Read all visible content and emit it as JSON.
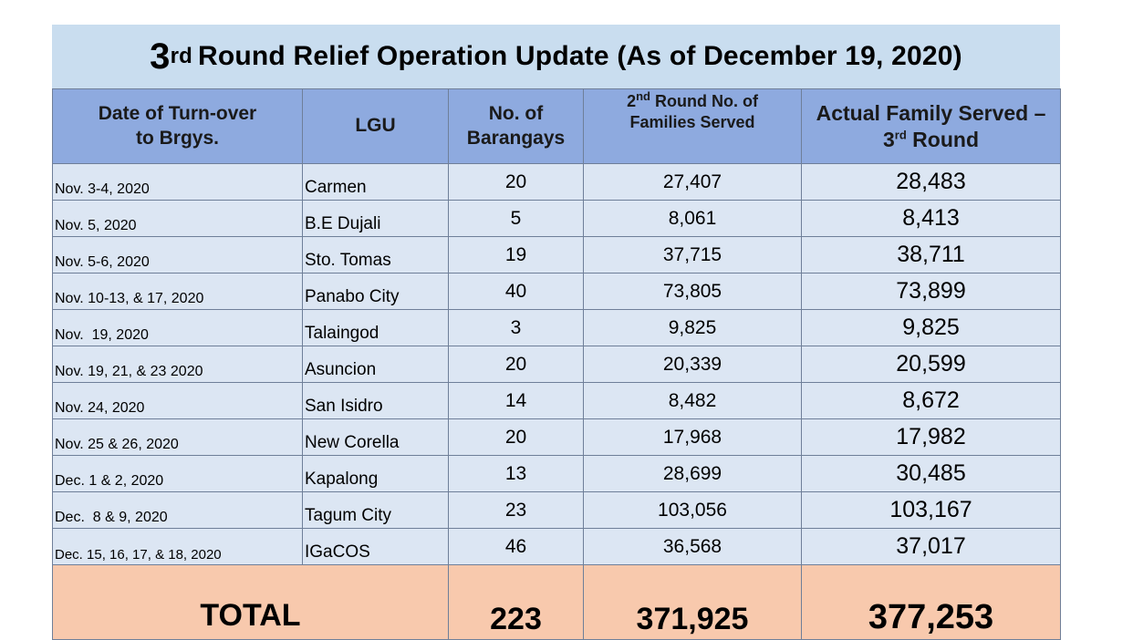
{
  "title": {
    "number": "3",
    "ordinal": "rd",
    "text": "Round Relief Operation Update (As of December 19, 2020)"
  },
  "headers": {
    "date_line1": "Date of Turn-over",
    "date_line2": "to Brgys.",
    "lgu": "LGU",
    "barangays_line1": "No. of",
    "barangays_line2": "Barangays",
    "second_round_num": "2",
    "second_round_sup": "nd",
    "second_round_line1": " Round No. of",
    "second_round_line2": "Families Served",
    "actual_line1": "Actual Family Served –",
    "actual_num": "3",
    "actual_sup": "rd",
    "actual_line2": " Round"
  },
  "rows": [
    {
      "date": "Nov. 3-4, 2020",
      "lgu": "Carmen",
      "barangays": "20",
      "second": "27,407",
      "actual": "28,483"
    },
    {
      "date": "Nov. 5, 2020",
      "lgu": "B.E Dujali",
      "barangays": "5",
      "second": "8,061",
      "actual": "8,413"
    },
    {
      "date": "Nov. 5-6, 2020",
      "lgu": "Sto. Tomas",
      "barangays": "19",
      "second": "37,715",
      "actual": "38,711"
    },
    {
      "date": "Nov. 10-13, & 17, 2020",
      "lgu": "Panabo City",
      "barangays": "40",
      "second": "73,805",
      "actual": "73,899"
    },
    {
      "date": "Nov.  19, 2020",
      "lgu": "Talaingod",
      "barangays": "3",
      "second": "9,825",
      "actual": "9,825"
    },
    {
      "date": "Nov. 19, 21, & 23 2020",
      "lgu": "Asuncion",
      "barangays": "20",
      "second": "20,339",
      "actual": "20,599"
    },
    {
      "date": "Nov. 24, 2020",
      "lgu": "San Isidro",
      "barangays": "14",
      "second": "8,482",
      "actual": "8,672"
    },
    {
      "date": "Nov. 25 & 26, 2020",
      "lgu": "New Corella",
      "barangays": "20",
      "second": "17,968",
      "actual": "17,982"
    },
    {
      "date": "Dec. 1 & 2, 2020",
      "lgu": "Kapalong",
      "barangays": "13",
      "second": "28,699",
      "actual": "30,485"
    },
    {
      "date": "Dec.  8 & 9, 2020",
      "lgu": "Tagum City",
      "barangays": "23",
      "second": "103,056",
      "actual": "103,167"
    },
    {
      "date": "Dec. 15, 16, 17, & 18, 2020",
      "lgu": "IGaCOS",
      "barangays": "46",
      "second": "36,568",
      "actual": "37,017"
    }
  ],
  "total": {
    "label": "TOTAL",
    "barangays": "223",
    "second": "371,925",
    "actual": "377,253"
  },
  "colors": {
    "title_bg": "#c9ddef",
    "header_bg": "#8eaadf",
    "row_bg": "#dce6f3",
    "total_bg": "#f8c9ad"
  }
}
